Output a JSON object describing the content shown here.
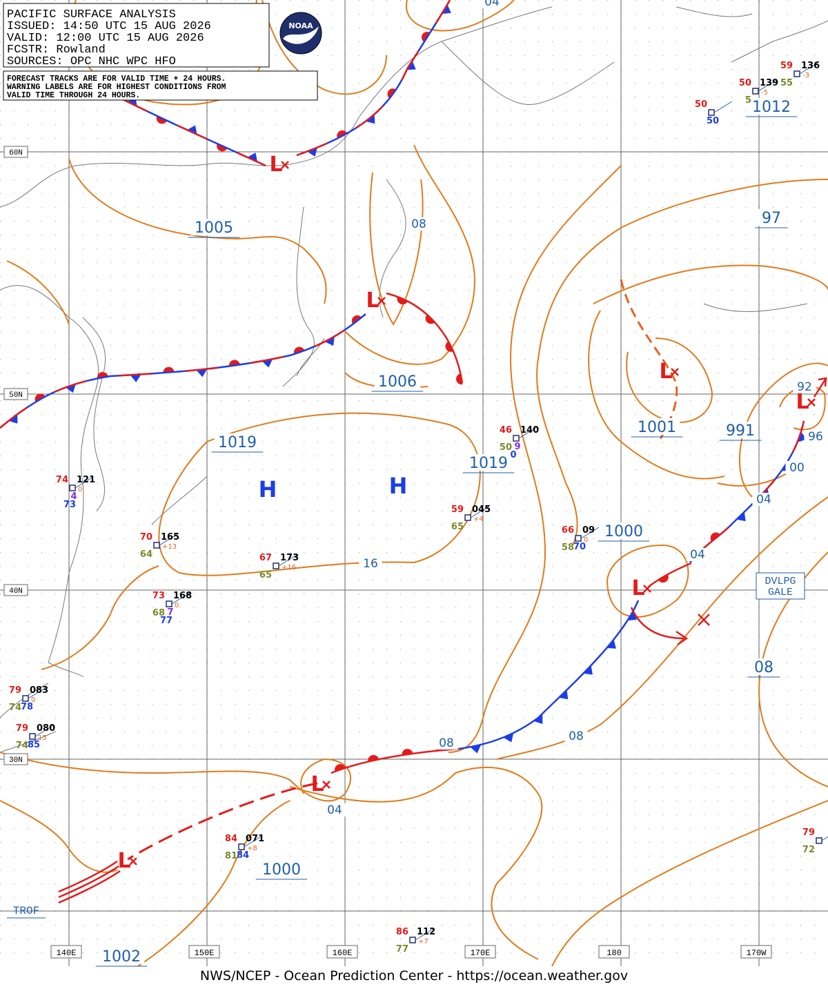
{
  "header": {
    "lines": [
      "PACIFIC SURFACE ANALYSIS",
      "ISSUED: 14:50 UTC 15 AUG 2026",
      "VALID: 12:00 UTC 15 AUG 2026",
      "FCSTR: Rowland",
      "SOURCES: OPC NHC WPC HFO"
    ],
    "logo": "NOAA"
  },
  "note": {
    "lines": [
      "FORECAST TRACKS ARE FOR VALID TIME + 24 HOURS.",
      "WARNING LABELS ARE FOR HIGHEST CONDITIONS FROM",
      "VALID TIME THROUGH 24 HOURS."
    ]
  },
  "grid": {
    "latitudes": [
      "60N",
      "50N",
      "40N",
      "30N"
    ],
    "longitudes": [
      "140E",
      "150E",
      "160E",
      "170E",
      "180",
      "170W"
    ]
  },
  "pressure_centers": {
    "highs": [
      "H",
      "H"
    ],
    "lows": [
      "L",
      "L",
      "L",
      "L",
      "L",
      "L",
      "L"
    ]
  },
  "isobar_labels": [
    "04",
    "1005",
    "08",
    "97",
    "1012",
    "1006",
    "1019",
    "1019",
    "1001",
    "991",
    "92",
    "96",
    "00",
    "04",
    "04",
    "1000",
    "16",
    "08",
    "08",
    "08",
    "04",
    "1000",
    "1002"
  ],
  "stations": [
    {
      "temperature": "46",
      "pressure": "140",
      "dewpoint": "50",
      "extra": [
        "9",
        "0"
      ]
    },
    {
      "temperature": "74",
      "pressure": "121",
      "tendency": "0",
      "extra": [
        "4",
        "73"
      ]
    },
    {
      "temperature": "70",
      "pressure": "165",
      "tendency": "+13",
      "dewpoint": "64"
    },
    {
      "temperature": "67",
      "pressure": "173",
      "tendency": "+16",
      "dewpoint": "65"
    },
    {
      "temperature": "59",
      "pressure": "045",
      "tendency": "+4",
      "dewpoint": "65"
    },
    {
      "temperature": "66",
      "pressure": "09",
      "tendency": "0",
      "dewpoint": "58",
      "extra": [
        "70"
      ]
    },
    {
      "temperature": "73",
      "pressure": "168",
      "tendency": "0",
      "dewpoint": "68",
      "extra": [
        "7",
        "77"
      ]
    },
    {
      "temperature": "79",
      "pressure": "083",
      "tendency": "0",
      "dewpoint": "74",
      "extra": [
        "78"
      ]
    },
    {
      "temperature": "79",
      "pressure": "080",
      "tendency": "15",
      "dewpoint": "74",
      "extra": [
        "85"
      ]
    },
    {
      "temperature": "84",
      "pressure": "071",
      "tendency": "+8",
      "dewpoint": "81",
      "extra": [
        "84"
      ]
    },
    {
      "temperature": "86",
      "pressure": "112",
      "tendency": "+7",
      "dewpoint": "77"
    },
    {
      "temperature": "79",
      "dewpoint": "72"
    },
    {
      "temperature": "50",
      "extra": [
        "50"
      ]
    },
    {
      "temperature": "50",
      "pressure": "139",
      "tendency": "-5",
      "dewpoint": "5"
    },
    {
      "temperature": "59",
      "pressure": "136",
      "tendency": "-3",
      "dewpoint": "55"
    }
  ],
  "annotations": {
    "warning": [
      "DVLPG",
      "GALE"
    ],
    "trough": "TROF"
  },
  "footer": "NWS/NCEP - Ocean Prediction Center - https://ocean.weather.gov"
}
